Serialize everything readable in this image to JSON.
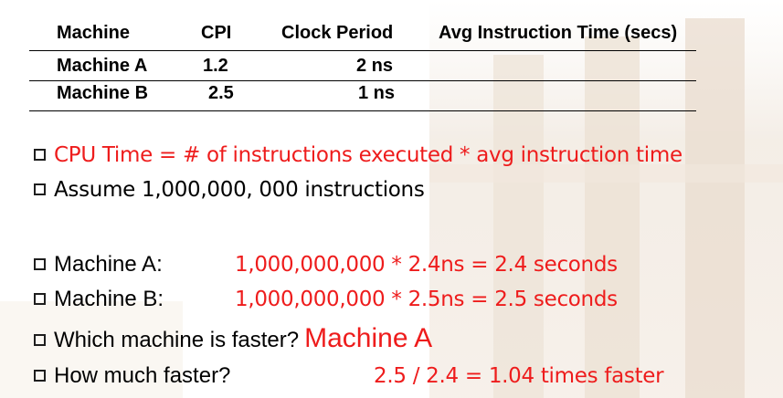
{
  "table": {
    "headers": [
      "Machine",
      "CPI",
      "Clock Period",
      "Avg Instruction Time (secs)"
    ],
    "rows": [
      {
        "machine": "Machine A",
        "cpi": "1.2",
        "clock_period": "2 ns"
      },
      {
        "machine": "Machine B",
        "cpi": "2.5",
        "clock_period": "1 ns"
      }
    ]
  },
  "bullets": {
    "cpu_time": "CPU Time = # of instructions executed * avg instruction time",
    "assume": "Assume 1,000,000, 000 instructions",
    "machine_a_label": "Machine A:",
    "machine_a_calc": "1,000,000,000 * 2.4ns = 2.4 seconds",
    "machine_b_label": "Machine B:",
    "machine_b_calc": "1,000,000,000 * 2.5ns = 2.5 seconds",
    "faster_q": "Which machine is faster?",
    "faster_a": "Machine A",
    "how_much_q": "How much faster?",
    "how_much_a": "2.5 / 2.4 = 1.04 times faster"
  },
  "colors": {
    "accent_red": "#ee1c1c",
    "text": "#000000"
  }
}
